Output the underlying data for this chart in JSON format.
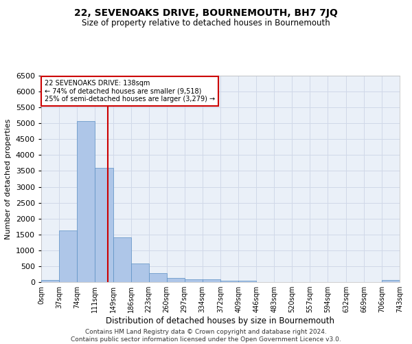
{
  "title": "22, SEVENOAKS DRIVE, BOURNEMOUTH, BH7 7JQ",
  "subtitle": "Size of property relative to detached houses in Bournemouth",
  "xlabel": "Distribution of detached houses by size in Bournemouth",
  "ylabel": "Number of detached properties",
  "footer_line1": "Contains HM Land Registry data © Crown copyright and database right 2024.",
  "footer_line2": "Contains public sector information licensed under the Open Government Licence v3.0.",
  "bin_edges": [
    0,
    37,
    74,
    111,
    149,
    186,
    223,
    260,
    297,
    334,
    372,
    409,
    446,
    483,
    520,
    557,
    594,
    632,
    669,
    706,
    743
  ],
  "bar_values": [
    75,
    1625,
    5075,
    3600,
    1400,
    575,
    290,
    135,
    90,
    85,
    50,
    50,
    0,
    0,
    0,
    0,
    0,
    0,
    0,
    60
  ],
  "bar_color": "#aec6e8",
  "bar_edge_color": "#5a8fc3",
  "grid_color": "#d0d8e8",
  "background_color": "#eaf0f8",
  "property_size": 138,
  "red_line_x": 138,
  "annotation_text_line1": "22 SEVENOAKS DRIVE: 138sqm",
  "annotation_text_line2": "← 74% of detached houses are smaller (9,518)",
  "annotation_text_line3": "25% of semi-detached houses are larger (3,279) →",
  "annotation_box_color": "#cc0000",
  "ylim": [
    0,
    6500
  ],
  "yticks": [
    0,
    500,
    1000,
    1500,
    2000,
    2500,
    3000,
    3500,
    4000,
    4500,
    5000,
    5500,
    6000,
    6500
  ],
  "xtick_labels": [
    "0sqm",
    "37sqm",
    "74sqm",
    "111sqm",
    "149sqm",
    "186sqm",
    "223sqm",
    "260sqm",
    "297sqm",
    "334sqm",
    "372sqm",
    "409sqm",
    "446sqm",
    "483sqm",
    "520sqm",
    "557sqm",
    "594sqm",
    "632sqm",
    "669sqm",
    "706sqm",
    "743sqm"
  ]
}
